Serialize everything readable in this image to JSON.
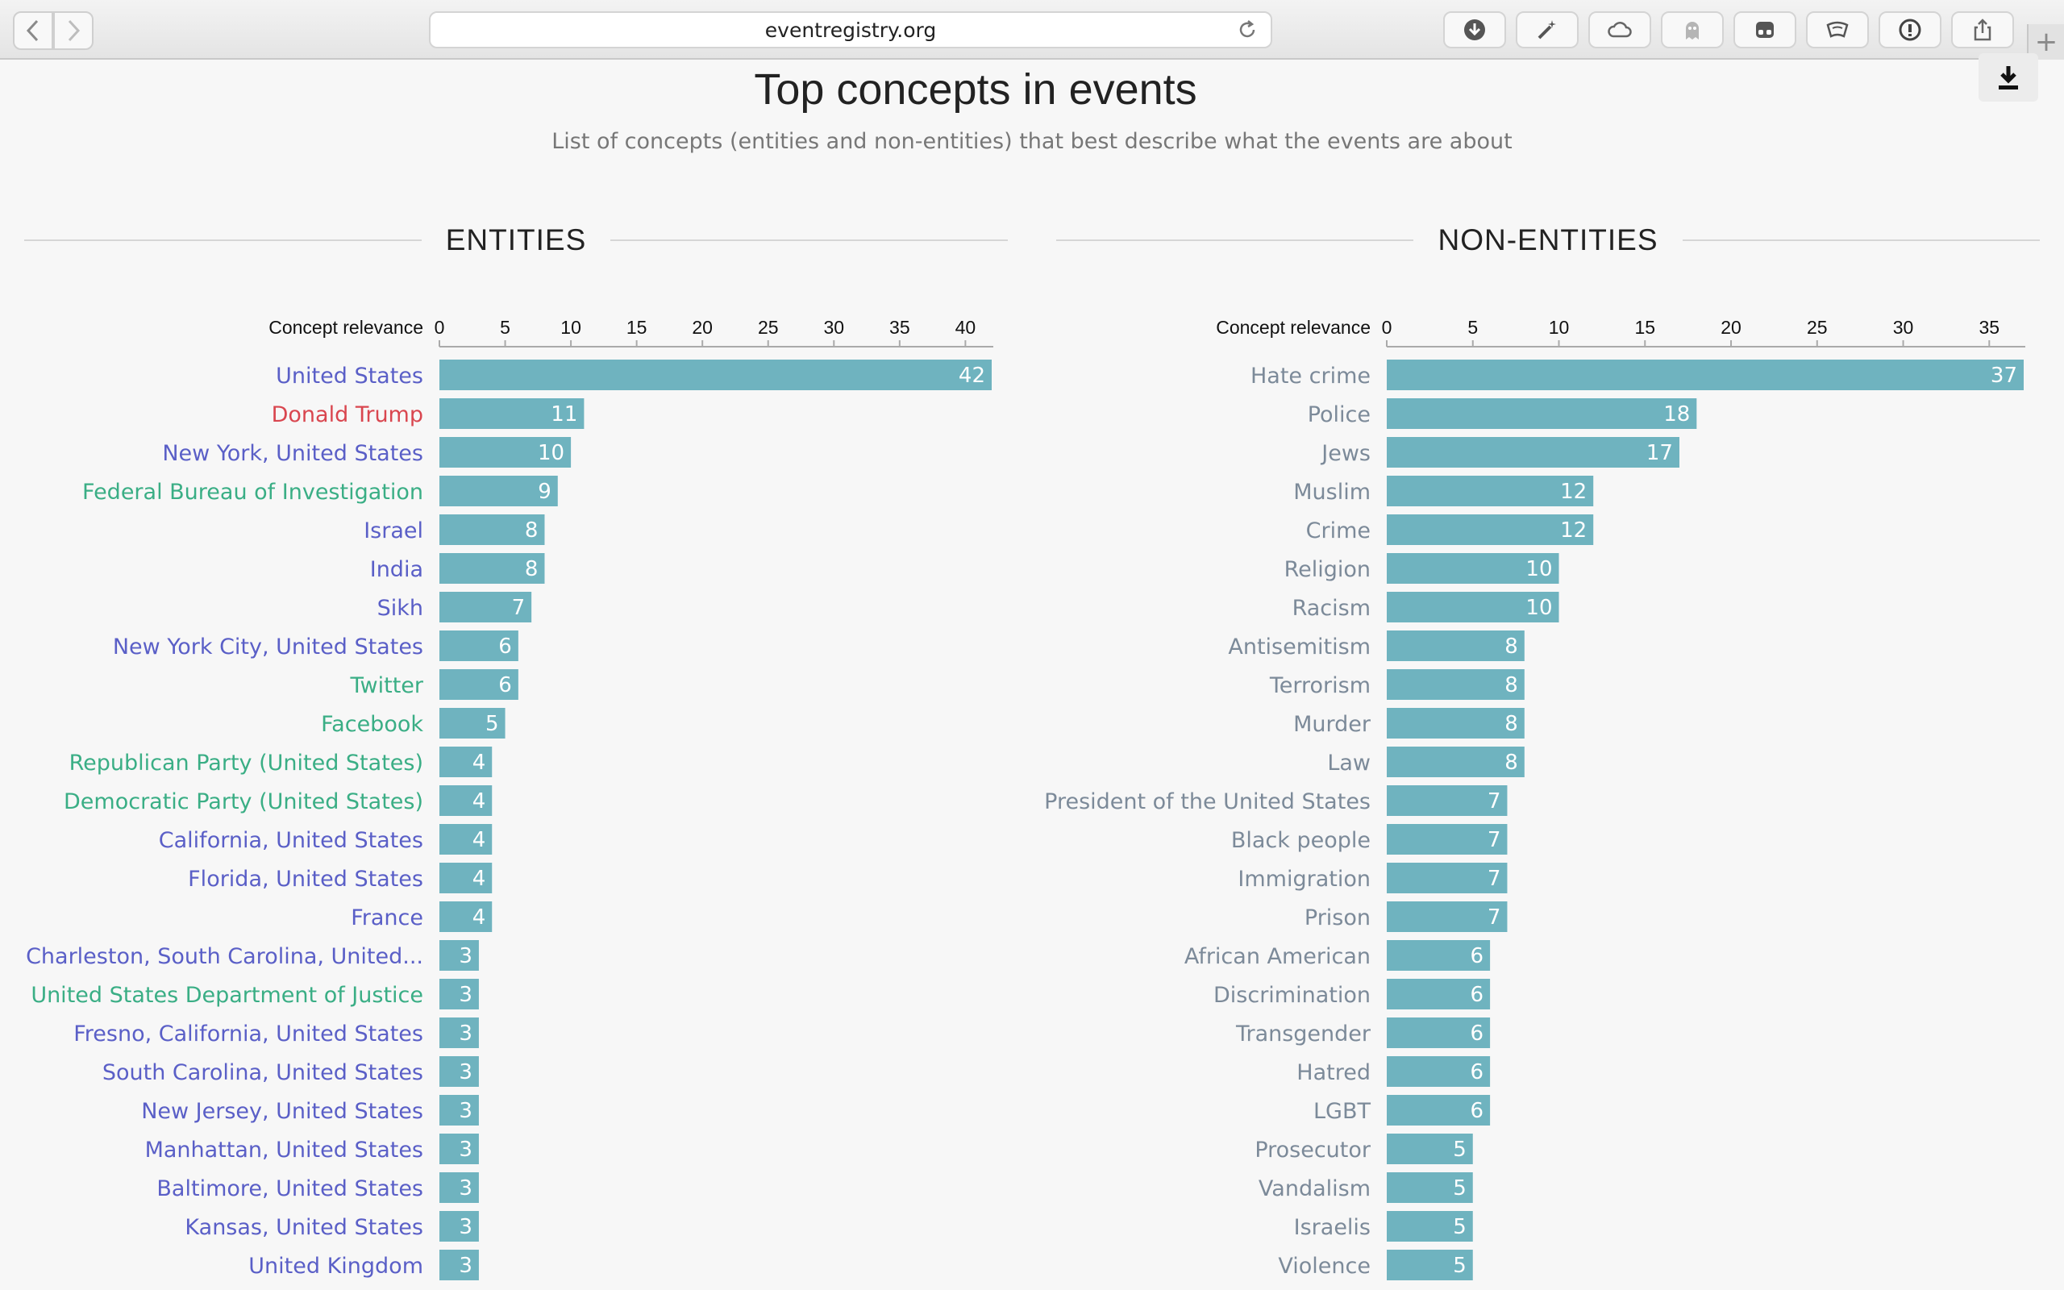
{
  "browser": {
    "url": "eventregistry.org",
    "back_icon": "chevron-left-icon",
    "forward_icon": "chevron-right-icon",
    "new_tab_label": "+"
  },
  "page": {
    "title": "Top concepts in events",
    "subtitle": "List of concepts (entities and non-entities) that best describe what the events are about"
  },
  "colors": {
    "bar": "#6fb3bf",
    "location": "#5a5fc7",
    "person": "#d9464f",
    "organization": "#3aae85",
    "wiki": "#7c8a99"
  },
  "chart_data": [
    {
      "type": "bar",
      "orientation": "horizontal",
      "title": "ENTITIES",
      "axis_label": "Concept relevance",
      "xlim": [
        0,
        42
      ],
      "ticks": [
        0,
        5,
        10,
        15,
        20,
        25,
        30,
        35,
        40
      ],
      "categories": [
        {
          "label": "United States",
          "kind": "location",
          "value": 42
        },
        {
          "label": "Donald Trump",
          "kind": "person",
          "value": 11
        },
        {
          "label": "New York, United States",
          "kind": "location",
          "value": 10
        },
        {
          "label": "Federal Bureau of Investigation",
          "kind": "organization",
          "value": 9
        },
        {
          "label": "Israel",
          "kind": "location",
          "value": 8
        },
        {
          "label": "India",
          "kind": "location",
          "value": 8
        },
        {
          "label": "Sikh",
          "kind": "location",
          "value": 7
        },
        {
          "label": "New York City, United States",
          "kind": "location",
          "value": 6
        },
        {
          "label": "Twitter",
          "kind": "organization",
          "value": 6
        },
        {
          "label": "Facebook",
          "kind": "organization",
          "value": 5
        },
        {
          "label": "Republican Party (United States)",
          "kind": "organization",
          "value": 4
        },
        {
          "label": "Democratic Party (United States)",
          "kind": "organization",
          "value": 4
        },
        {
          "label": "California, United States",
          "kind": "location",
          "value": 4
        },
        {
          "label": "Florida, United States",
          "kind": "location",
          "value": 4
        },
        {
          "label": "France",
          "kind": "location",
          "value": 4
        },
        {
          "label": "Charleston, South Carolina, United...",
          "kind": "location",
          "value": 3
        },
        {
          "label": "United States Department of Justice",
          "kind": "organization",
          "value": 3
        },
        {
          "label": "Fresno, California, United States",
          "kind": "location",
          "value": 3
        },
        {
          "label": "South Carolina, United States",
          "kind": "location",
          "value": 3
        },
        {
          "label": "New Jersey, United States",
          "kind": "location",
          "value": 3
        },
        {
          "label": "Manhattan, United States",
          "kind": "location",
          "value": 3
        },
        {
          "label": "Baltimore, United States",
          "kind": "location",
          "value": 3
        },
        {
          "label": "Kansas, United States",
          "kind": "location",
          "value": 3
        },
        {
          "label": "United Kingdom",
          "kind": "location",
          "value": 3
        }
      ]
    },
    {
      "type": "bar",
      "orientation": "horizontal",
      "title": "NON-ENTITIES",
      "axis_label": "Concept relevance",
      "xlim": [
        0,
        37
      ],
      "ticks": [
        0,
        5,
        10,
        15,
        20,
        25,
        30,
        35
      ],
      "categories": [
        {
          "label": "Hate crime",
          "kind": "wiki",
          "value": 37
        },
        {
          "label": "Police",
          "kind": "wiki",
          "value": 18
        },
        {
          "label": "Jews",
          "kind": "wiki",
          "value": 17
        },
        {
          "label": "Muslim",
          "kind": "wiki",
          "value": 12
        },
        {
          "label": "Crime",
          "kind": "wiki",
          "value": 12
        },
        {
          "label": "Religion",
          "kind": "wiki",
          "value": 10
        },
        {
          "label": "Racism",
          "kind": "wiki",
          "value": 10
        },
        {
          "label": "Antisemitism",
          "kind": "wiki",
          "value": 8
        },
        {
          "label": "Terrorism",
          "kind": "wiki",
          "value": 8
        },
        {
          "label": "Murder",
          "kind": "wiki",
          "value": 8
        },
        {
          "label": "Law",
          "kind": "wiki",
          "value": 8
        },
        {
          "label": "President of the United States",
          "kind": "wiki",
          "value": 7
        },
        {
          "label": "Black people",
          "kind": "wiki",
          "value": 7
        },
        {
          "label": "Immigration",
          "kind": "wiki",
          "value": 7
        },
        {
          "label": "Prison",
          "kind": "wiki",
          "value": 7
        },
        {
          "label": "African American",
          "kind": "wiki",
          "value": 6
        },
        {
          "label": "Discrimination",
          "kind": "wiki",
          "value": 6
        },
        {
          "label": "Transgender",
          "kind": "wiki",
          "value": 6
        },
        {
          "label": "Hatred",
          "kind": "wiki",
          "value": 6
        },
        {
          "label": "LGBT",
          "kind": "wiki",
          "value": 6
        },
        {
          "label": "Prosecutor",
          "kind": "wiki",
          "value": 5
        },
        {
          "label": "Vandalism",
          "kind": "wiki",
          "value": 5
        },
        {
          "label": "Israelis",
          "kind": "wiki",
          "value": 5
        },
        {
          "label": "Violence",
          "kind": "wiki",
          "value": 5
        }
      ]
    }
  ]
}
